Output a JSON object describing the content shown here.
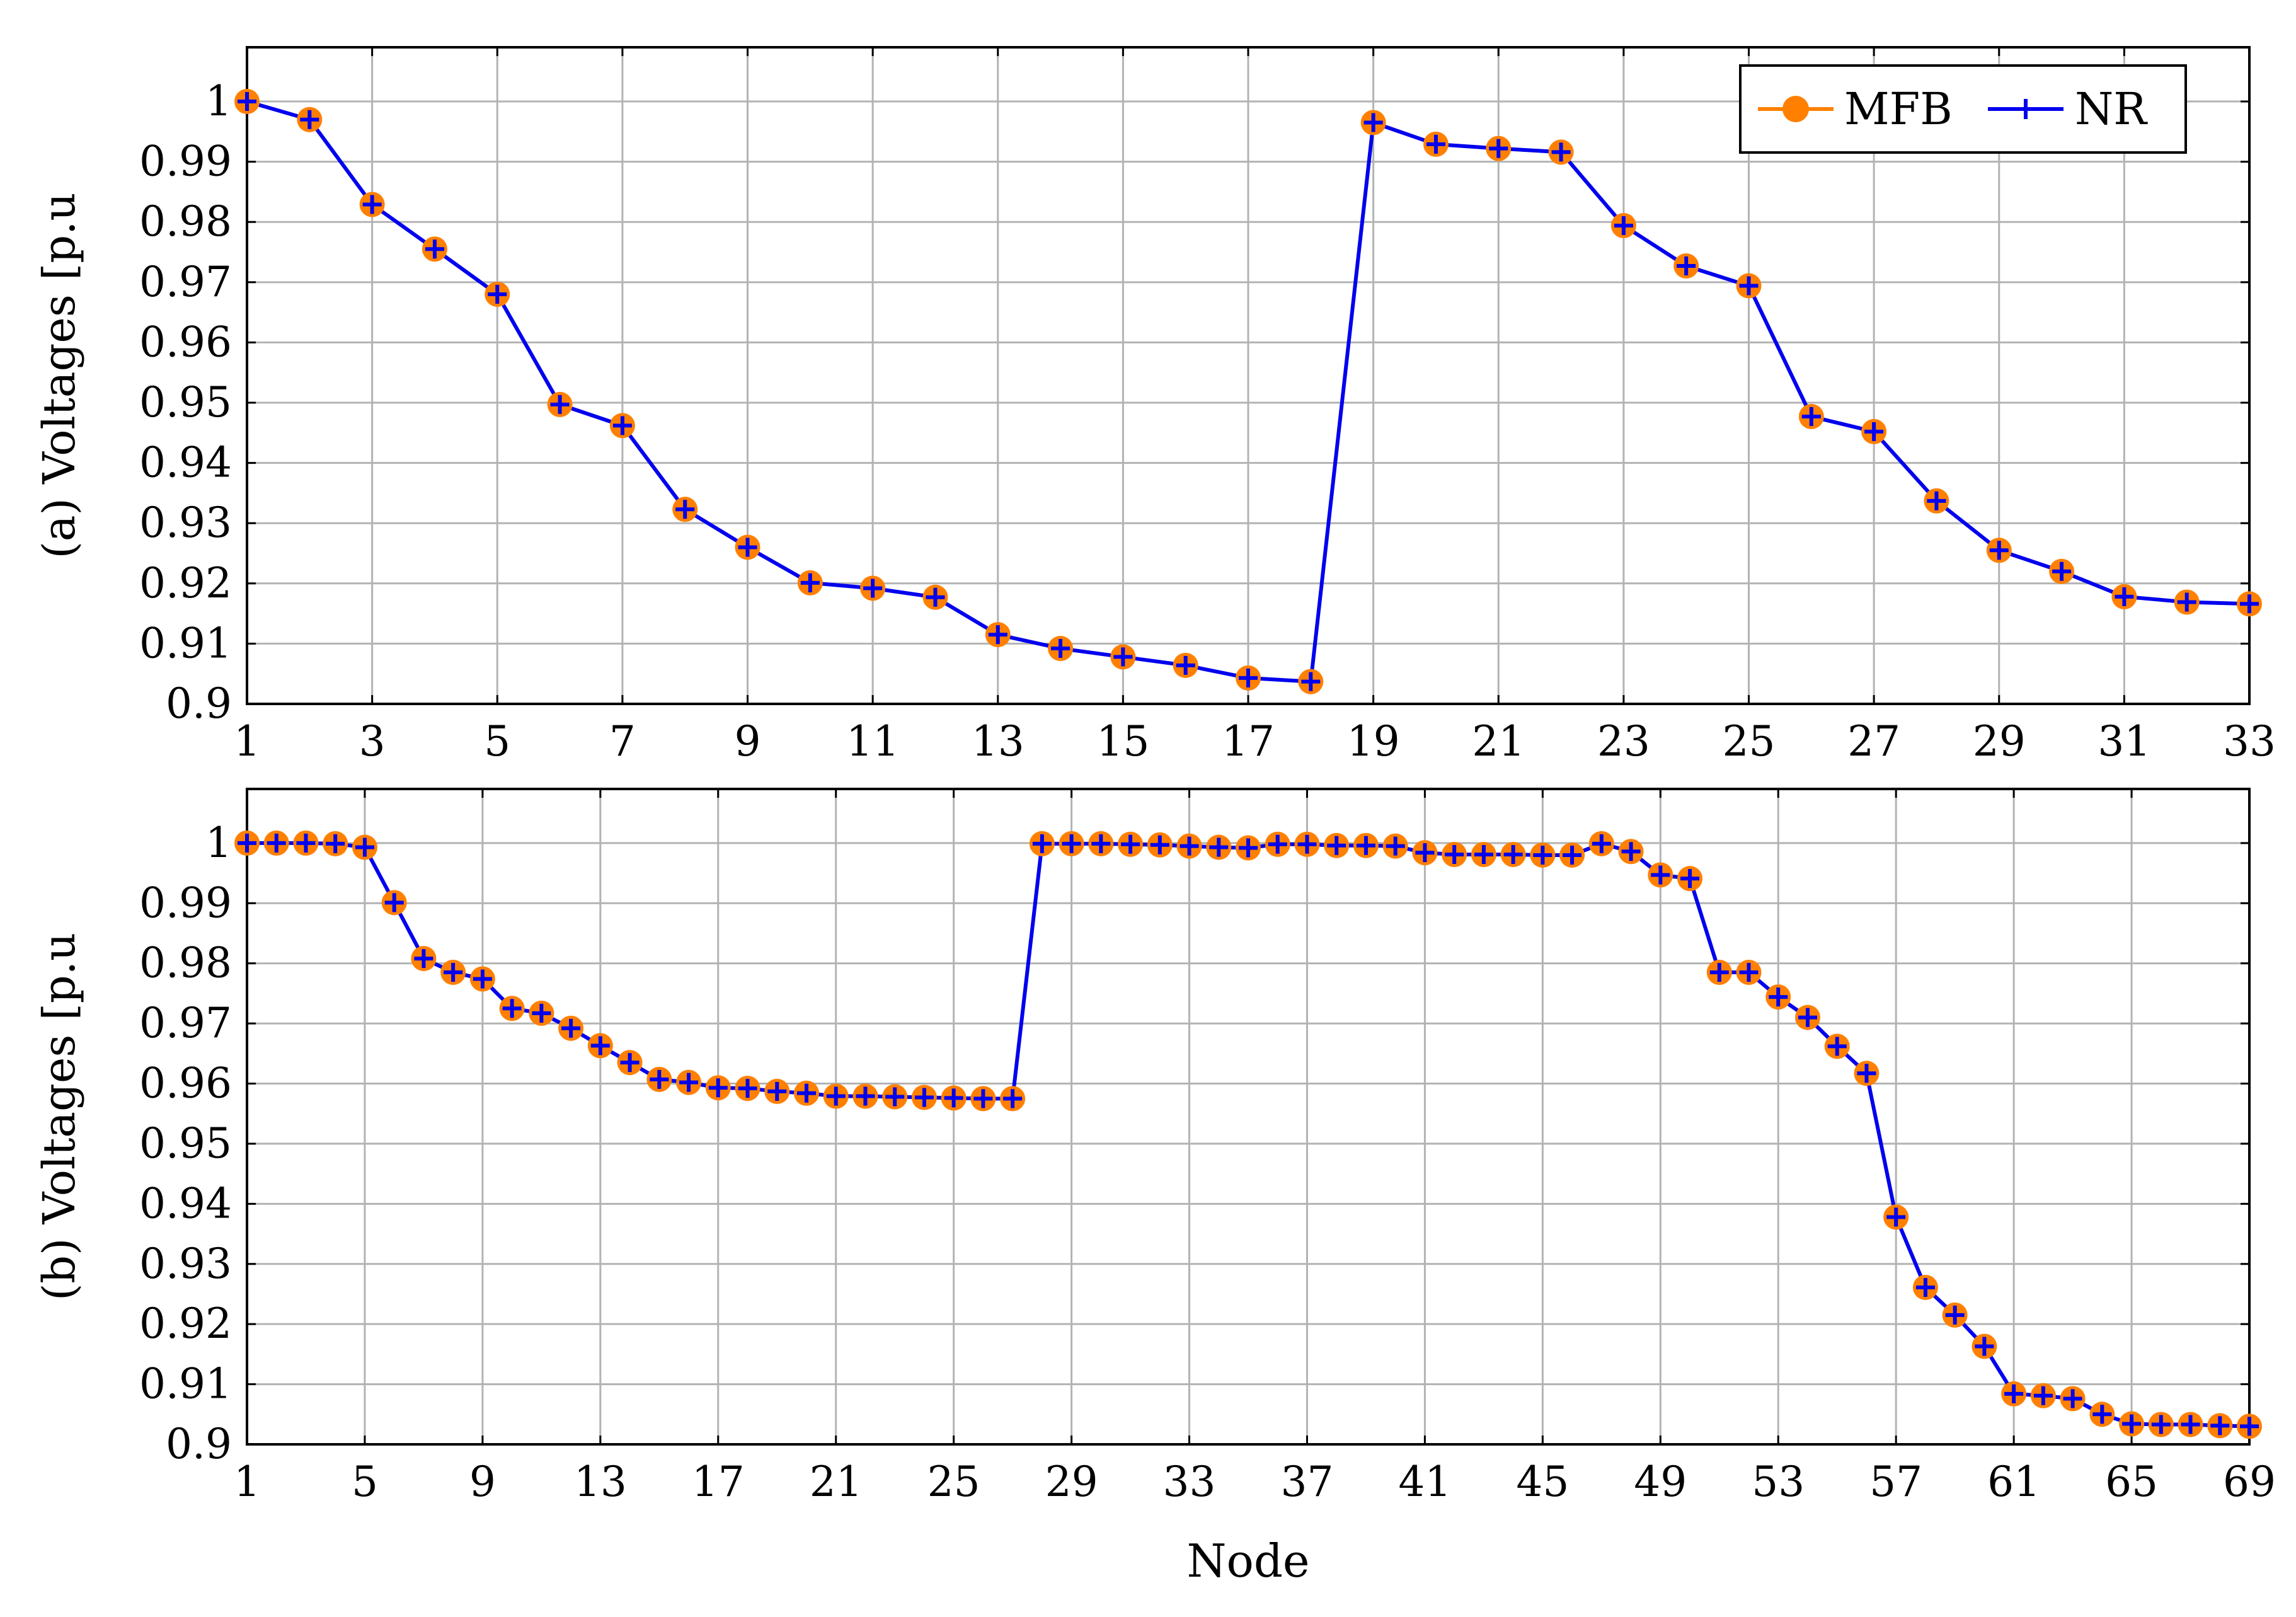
{
  "colors": {
    "mfb": "#ff8000",
    "nr": "#0000ee",
    "grid": "#b3b3b3",
    "axis": "#000000"
  },
  "legend": {
    "entries": [
      "MFB",
      "NR"
    ],
    "placement": "top-right"
  },
  "chart_data": [
    {
      "type": "line",
      "ylabel": "(a) Voltages [p.u",
      "xlabel": "",
      "xlim": [
        1,
        33
      ],
      "ylim": [
        0.9,
        1.009
      ],
      "xticks": [
        1,
        3,
        5,
        7,
        9,
        11,
        13,
        15,
        17,
        19,
        21,
        23,
        25,
        27,
        29,
        31,
        33
      ],
      "yticks": [
        0.9,
        0.91,
        0.92,
        0.93,
        0.94,
        0.95,
        0.96,
        0.97,
        0.98,
        0.99,
        1
      ],
      "ytick_labels": [
        "0.9",
        "0.91",
        "0.92",
        "0.93",
        "0.94",
        "0.95",
        "0.96",
        "0.97",
        "0.98",
        "0.99",
        "1"
      ],
      "grid": true,
      "legend": "top-right",
      "x": [
        1,
        2,
        3,
        4,
        5,
        6,
        7,
        8,
        9,
        10,
        11,
        12,
        13,
        14,
        15,
        16,
        17,
        18,
        19,
        20,
        21,
        22,
        23,
        24,
        25,
        26,
        27,
        28,
        29,
        30,
        31,
        32,
        33
      ],
      "series": [
        {
          "name": "MFB",
          "values": [
            1.0,
            0.997,
            0.9829,
            0.9755,
            0.968,
            0.9497,
            0.9462,
            0.9323,
            0.926,
            0.9201,
            0.9192,
            0.9177,
            0.9115,
            0.9092,
            0.9078,
            0.9064,
            0.9043,
            0.9037,
            0.9965,
            0.9929,
            0.9922,
            0.9916,
            0.9794,
            0.9727,
            0.9694,
            0.9477,
            0.9452,
            0.9337,
            0.9255,
            0.922,
            0.9178,
            0.9169,
            0.9166
          ]
        },
        {
          "name": "NR",
          "values": [
            1.0,
            0.997,
            0.9829,
            0.9755,
            0.968,
            0.9497,
            0.9462,
            0.9323,
            0.926,
            0.9201,
            0.9192,
            0.9177,
            0.9115,
            0.9092,
            0.9078,
            0.9064,
            0.9043,
            0.9037,
            0.9965,
            0.9929,
            0.9922,
            0.9916,
            0.9794,
            0.9727,
            0.9694,
            0.9477,
            0.9452,
            0.9337,
            0.9255,
            0.922,
            0.9178,
            0.9169,
            0.9166
          ]
        }
      ]
    },
    {
      "type": "line",
      "ylabel": "(b) Voltages [p.u",
      "xlabel": "Node",
      "xlim": [
        1,
        69
      ],
      "ylim": [
        0.9,
        1.009
      ],
      "xticks": [
        1,
        5,
        9,
        13,
        17,
        21,
        25,
        29,
        33,
        37,
        41,
        45,
        49,
        53,
        57,
        61,
        65,
        69
      ],
      "yticks": [
        0.9,
        0.91,
        0.92,
        0.93,
        0.94,
        0.95,
        0.96,
        0.97,
        0.98,
        0.99,
        1
      ],
      "ytick_labels": [
        "0.9",
        "0.91",
        "0.92",
        "0.93",
        "0.94",
        "0.95",
        "0.96",
        "0.97",
        "0.98",
        "0.99",
        "1"
      ],
      "grid": true,
      "x": [
        1,
        2,
        3,
        4,
        5,
        6,
        7,
        8,
        9,
        10,
        11,
        12,
        13,
        14,
        15,
        16,
        17,
        18,
        19,
        20,
        21,
        22,
        23,
        24,
        25,
        26,
        27,
        28,
        29,
        30,
        31,
        32,
        33,
        34,
        35,
        36,
        37,
        38,
        39,
        40,
        41,
        42,
        43,
        44,
        45,
        46,
        47,
        48,
        49,
        50,
        51,
        52,
        53,
        54,
        55,
        56,
        57,
        58,
        59,
        60,
        61,
        62,
        63,
        64,
        65,
        66,
        67,
        68,
        69
      ],
      "series": [
        {
          "name": "MFB",
          "values": [
            1.0,
            1.0,
            1.0,
            0.9999,
            0.9993,
            0.9901,
            0.9808,
            0.9785,
            0.9774,
            0.9725,
            0.9717,
            0.9692,
            0.9663,
            0.9635,
            0.9607,
            0.9602,
            0.9593,
            0.9592,
            0.9587,
            0.9584,
            0.9579,
            0.9579,
            0.9578,
            0.9577,
            0.9576,
            0.9575,
            0.9575,
            0.9999,
            0.9999,
            0.9999,
            0.9998,
            0.9997,
            0.9995,
            0.9993,
            0.9992,
            0.9998,
            0.9998,
            0.9996,
            0.9996,
            0.9995,
            0.9984,
            0.9981,
            0.9981,
            0.9981,
            0.998,
            0.998,
            0.9999,
            0.9986,
            0.9947,
            0.9941,
            0.9785,
            0.9785,
            0.9744,
            0.971,
            0.9662,
            0.9617,
            0.9378,
            0.9261,
            0.9215,
            0.9163,
            0.9084,
            0.9081,
            0.9076,
            0.905,
            0.9034,
            0.9033,
            0.9033,
            0.9031,
            0.903
          ]
        },
        {
          "name": "NR",
          "values": [
            1.0,
            1.0,
            1.0,
            0.9999,
            0.9993,
            0.9901,
            0.9808,
            0.9785,
            0.9774,
            0.9725,
            0.9717,
            0.9692,
            0.9663,
            0.9635,
            0.9607,
            0.9602,
            0.9593,
            0.9592,
            0.9587,
            0.9584,
            0.9579,
            0.9579,
            0.9578,
            0.9577,
            0.9576,
            0.9575,
            0.9575,
            0.9999,
            0.9999,
            0.9999,
            0.9998,
            0.9997,
            0.9995,
            0.9993,
            0.9992,
            0.9998,
            0.9998,
            0.9996,
            0.9996,
            0.9995,
            0.9984,
            0.9981,
            0.9981,
            0.9981,
            0.998,
            0.998,
            0.9999,
            0.9986,
            0.9947,
            0.9941,
            0.9785,
            0.9785,
            0.9744,
            0.971,
            0.9662,
            0.9617,
            0.9378,
            0.9261,
            0.9215,
            0.9163,
            0.9084,
            0.9081,
            0.9076,
            0.905,
            0.9034,
            0.9033,
            0.9033,
            0.9031,
            0.903
          ]
        }
      ]
    }
  ]
}
